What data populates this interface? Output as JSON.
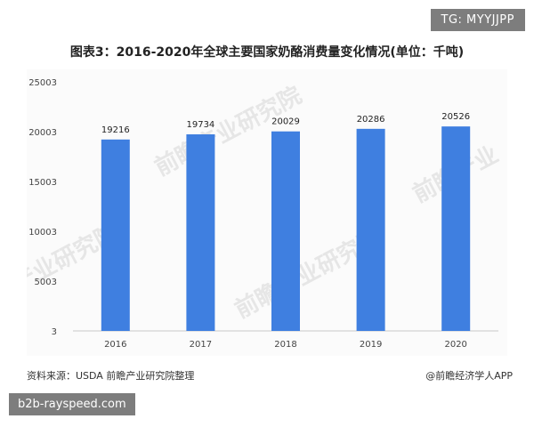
{
  "watermark_tag": "TG: MYYJJPP",
  "site_tag": "b2b-rayspeed.com",
  "source": "资料来源：USDA 前瞻产业研究院整理",
  "credit": "@前瞻经济学人APP",
  "colors": {
    "bar": "#3f7fe0",
    "axis": "#c8c8c8",
    "background": "#fbfbfb"
  },
  "chart_data": {
    "type": "bar",
    "title": "图表3：2016-2020年全球主要国家奶酪消费量变化情况(单位：千吨)",
    "xlabel": "",
    "ylabel": "",
    "categories": [
      "2016",
      "2017",
      "2018",
      "2019",
      "2020"
    ],
    "values": [
      19216,
      19734,
      20029,
      20286,
      20526
    ],
    "ylim": [
      3,
      25003
    ],
    "yticks": [
      "25003",
      "20003",
      "15003",
      "10003",
      "5003",
      "3"
    ],
    "ytick_values": [
      25003,
      20003,
      15003,
      10003,
      5003,
      3
    ],
    "grid": false,
    "legend": "none"
  }
}
